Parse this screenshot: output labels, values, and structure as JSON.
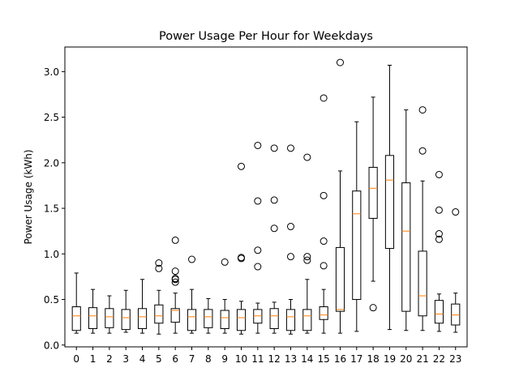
{
  "chart_data": {
    "type": "box",
    "title": "Power Usage Per Hour for Weekdays",
    "xlabel": "",
    "ylabel": "Power Usage (kWh)",
    "ylim": [
      -0.02,
      3.27
    ],
    "yticks": [
      "0.0",
      "0.5",
      "1.0",
      "1.5",
      "2.0",
      "2.5",
      "3.0"
    ],
    "grid": false,
    "box_color": "#000000",
    "median_color": "#ff7f0e",
    "boxes": [
      {
        "label": "0",
        "whislo": 0.13,
        "q1": 0.16,
        "med": 0.32,
        "q3": 0.42,
        "whishi": 0.79,
        "fliers": []
      },
      {
        "label": "1",
        "whislo": 0.13,
        "q1": 0.18,
        "med": 0.32,
        "q3": 0.41,
        "whishi": 0.61,
        "fliers": []
      },
      {
        "label": "2",
        "whislo": 0.13,
        "q1": 0.19,
        "med": 0.31,
        "q3": 0.4,
        "whishi": 0.54,
        "fliers": []
      },
      {
        "label": "3",
        "whislo": 0.14,
        "q1": 0.17,
        "med": 0.3,
        "q3": 0.39,
        "whishi": 0.6,
        "fliers": []
      },
      {
        "label": "4",
        "whislo": 0.13,
        "q1": 0.18,
        "med": 0.31,
        "q3": 0.4,
        "whishi": 0.72,
        "fliers": []
      },
      {
        "label": "5",
        "whislo": 0.12,
        "q1": 0.24,
        "med": 0.32,
        "q3": 0.44,
        "whishi": 0.6,
        "fliers": [
          0.84,
          0.9
        ]
      },
      {
        "label": "6",
        "whislo": 0.13,
        "q1": 0.25,
        "med": 0.38,
        "q3": 0.4,
        "whishi": 0.57,
        "fliers": [
          0.69,
          0.72,
          0.73,
          0.81,
          1.15
        ]
      },
      {
        "label": "7",
        "whislo": 0.13,
        "q1": 0.16,
        "med": 0.31,
        "q3": 0.39,
        "whishi": 0.61,
        "fliers": [
          0.94
        ]
      },
      {
        "label": "8",
        "whislo": 0.13,
        "q1": 0.19,
        "med": 0.31,
        "q3": 0.39,
        "whishi": 0.51,
        "fliers": []
      },
      {
        "label": "9",
        "whislo": 0.13,
        "q1": 0.18,
        "med": 0.3,
        "q3": 0.38,
        "whishi": 0.5,
        "fliers": [
          0.91
        ]
      },
      {
        "label": "10",
        "whislo": 0.12,
        "q1": 0.16,
        "med": 0.3,
        "q3": 0.39,
        "whishi": 0.48,
        "fliers": [
          0.95,
          0.96,
          1.96
        ]
      },
      {
        "label": "11",
        "whislo": 0.13,
        "q1": 0.24,
        "med": 0.32,
        "q3": 0.39,
        "whishi": 0.46,
        "fliers": [
          0.86,
          1.04,
          1.58,
          2.19
        ]
      },
      {
        "label": "12",
        "whislo": 0.13,
        "q1": 0.18,
        "med": 0.32,
        "q3": 0.4,
        "whishi": 0.47,
        "fliers": [
          1.28,
          1.59,
          2.16
        ]
      },
      {
        "label": "13",
        "whislo": 0.12,
        "q1": 0.16,
        "med": 0.31,
        "q3": 0.39,
        "whishi": 0.5,
        "fliers": [
          0.97,
          1.3,
          2.16
        ]
      },
      {
        "label": "14",
        "whislo": 0.13,
        "q1": 0.16,
        "med": 0.32,
        "q3": 0.39,
        "whishi": 0.72,
        "fliers": [
          0.93,
          0.97,
          2.06
        ]
      },
      {
        "label": "15",
        "whislo": 0.13,
        "q1": 0.28,
        "med": 0.33,
        "q3": 0.42,
        "whishi": 0.61,
        "fliers": [
          0.87,
          1.14,
          1.64,
          2.71
        ]
      },
      {
        "label": "16",
        "whislo": 0.13,
        "q1": 0.37,
        "med": 0.39,
        "q3": 1.07,
        "whishi": 1.91,
        "fliers": [
          3.1
        ]
      },
      {
        "label": "17",
        "whislo": 0.15,
        "q1": 0.5,
        "med": 1.44,
        "q3": 1.69,
        "whishi": 2.45,
        "fliers": []
      },
      {
        "label": "18",
        "whislo": 0.7,
        "q1": 1.39,
        "med": 1.72,
        "q3": 1.95,
        "whishi": 2.72,
        "fliers": [
          0.41
        ]
      },
      {
        "label": "19",
        "whislo": 0.17,
        "q1": 1.06,
        "med": 1.81,
        "q3": 2.08,
        "whishi": 3.07,
        "fliers": []
      },
      {
        "label": "20",
        "whislo": 0.16,
        "q1": 0.37,
        "med": 1.25,
        "q3": 1.78,
        "whishi": 2.58,
        "fliers": []
      },
      {
        "label": "21",
        "whislo": 0.16,
        "q1": 0.32,
        "med": 0.54,
        "q3": 1.03,
        "whishi": 1.8,
        "fliers": [
          2.13,
          2.58
        ]
      },
      {
        "label": "22",
        "whislo": 0.15,
        "q1": 0.24,
        "med": 0.34,
        "q3": 0.49,
        "whishi": 0.56,
        "fliers": [
          1.16,
          1.22,
          1.48,
          1.87
        ]
      },
      {
        "label": "23",
        "whislo": 0.14,
        "q1": 0.22,
        "med": 0.33,
        "q3": 0.45,
        "whishi": 0.57,
        "fliers": [
          1.46
        ]
      }
    ]
  }
}
